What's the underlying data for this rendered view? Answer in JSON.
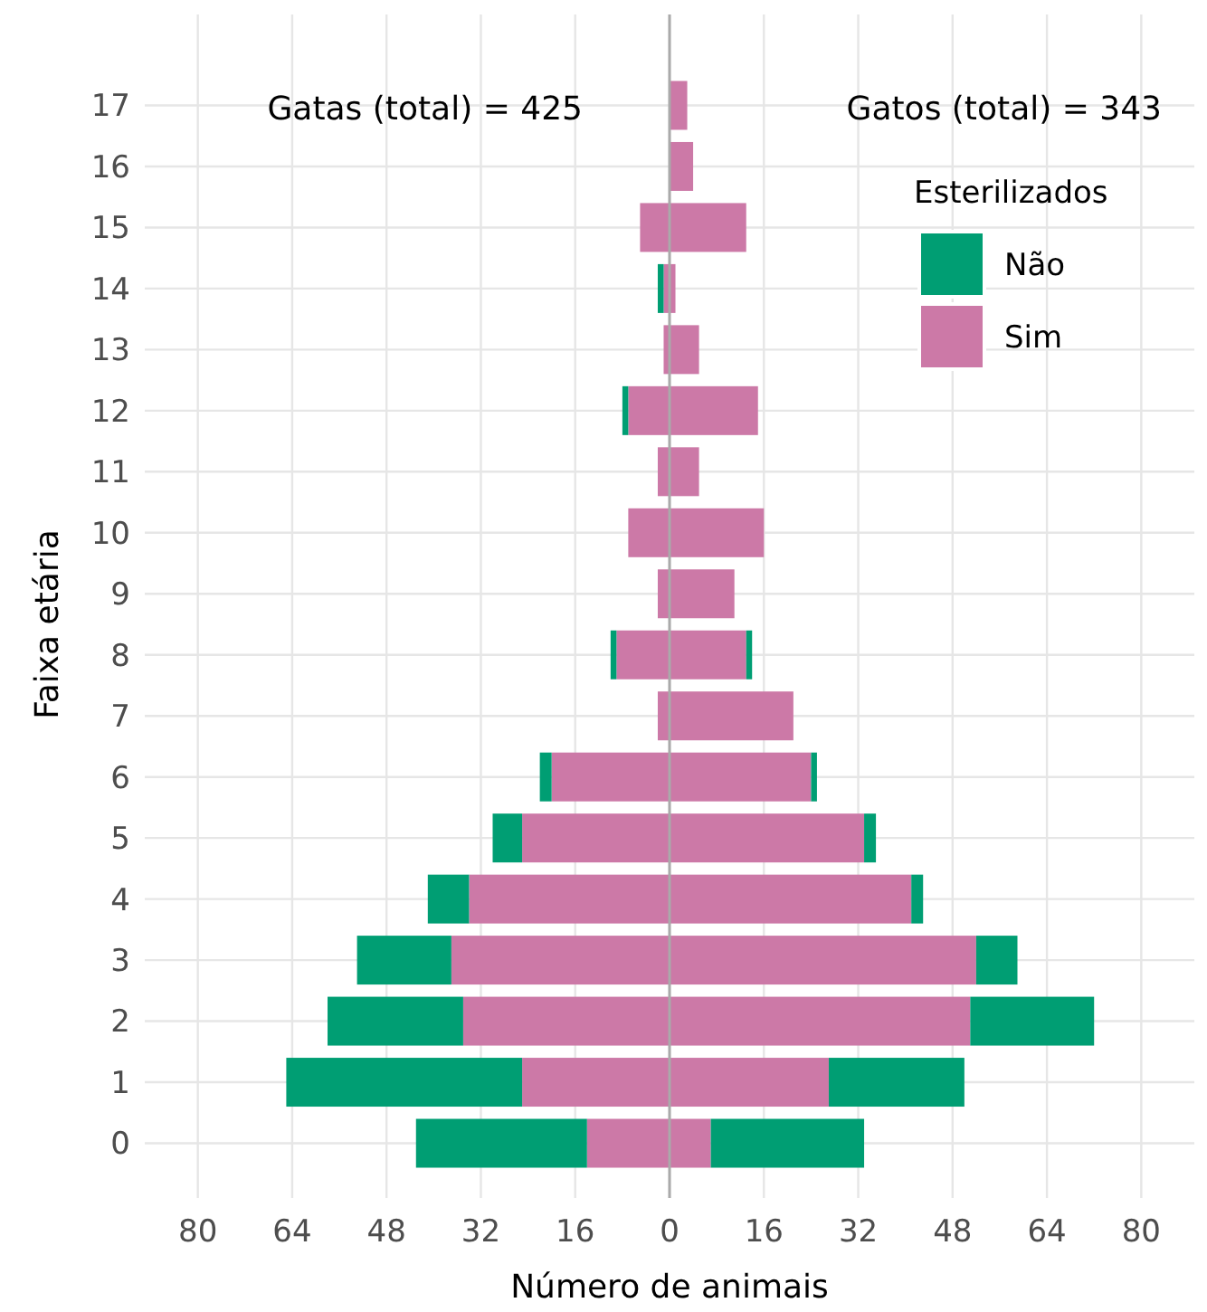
{
  "chart_data": {
    "type": "bar",
    "orientation": "horizontal",
    "stacked": true,
    "xlabel": "Número de animais",
    "ylabel": "Faixa etária",
    "legend_title": "Esterilizados",
    "categories": [
      "17",
      "16",
      "15",
      "14",
      "13",
      "12",
      "11",
      "10",
      "9",
      "8",
      "7",
      "6",
      "5",
      "4",
      "3",
      "2",
      "1",
      "0"
    ],
    "series": [
      {
        "name": "Sim",
        "color": "#cc79a7",
        "values": [
          0,
          0,
          -5,
          -1,
          -1,
          -7,
          -2,
          -7,
          -2,
          -9,
          -2,
          -20,
          -25,
          -34,
          -37,
          -35,
          -25,
          -14
        ]
      },
      {
        "name": "Não",
        "color": "#009e73",
        "values": [
          0,
          0,
          0,
          -1,
          0,
          -1,
          0,
          0,
          0,
          -1,
          0,
          -2,
          -5,
          -7,
          -16,
          -23,
          -40,
          -29
        ]
      },
      {
        "color": "#cc79a7",
        "values": [
          3,
          4,
          13,
          1,
          5,
          15,
          5,
          16,
          11,
          13,
          21,
          24,
          33,
          41,
          52,
          51,
          27,
          7
        ]
      },
      {
        "color": "#009e73",
        "values": [
          0,
          0,
          0,
          0,
          0,
          0,
          0,
          0,
          0,
          1,
          0,
          1,
          2,
          2,
          7,
          21,
          23,
          26
        ]
      }
    ],
    "xlim": [
      -89,
      89
    ],
    "xticks": [
      {
        "value": -80,
        "label": "80"
      },
      {
        "value": -64,
        "label": "64"
      },
      {
        "value": -48,
        "label": "48"
      },
      {
        "value": -32,
        "label": "32"
      },
      {
        "value": -16,
        "label": "16"
      },
      0,
      16,
      32,
      48,
      64,
      80
    ],
    "ref_lines": [
      {
        "axis": "x",
        "value": 0,
        "color": "#aaaaaa"
      }
    ],
    "annotations": [
      "Gatas (total) = 425",
      "Gatos (total) = 343"
    ],
    "grid": true,
    "legend": "top right"
  }
}
